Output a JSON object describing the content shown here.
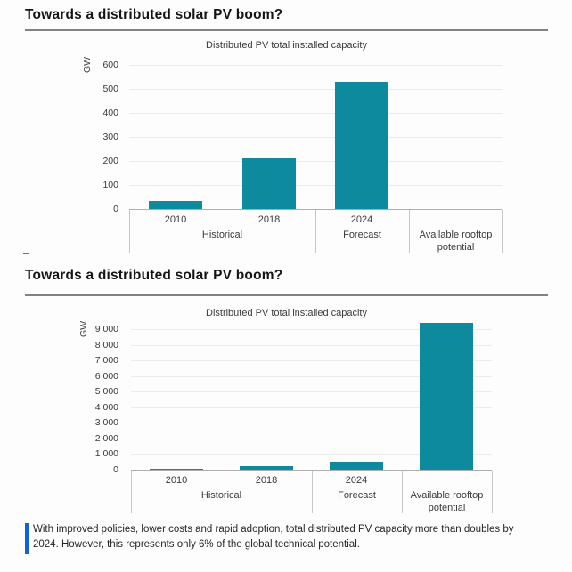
{
  "section1": {
    "title": "Towards a distributed solar PV boom?"
  },
  "section2": {
    "title": "Towards a distributed solar PV boom?"
  },
  "caption": {
    "text": "With improved policies, lower costs and rapid adoption, total distributed PV capacity more than doubles by 2024. However, this represents only 6% of the global technical potential."
  },
  "colors": {
    "bar": "#0d8a9d",
    "gridline": "#ececec",
    "axis_line": "#aeaeae",
    "axis_divider": "#c4c7cb",
    "title_rule": "#828282",
    "caption_accent": "#1161d8",
    "text": "#262626"
  },
  "chart_data": [
    {
      "type": "bar",
      "title": "Distributed PV total installed capacity",
      "ylabel": "GW",
      "categories": [
        "2010",
        "2018",
        "2024",
        "Available rooftop potential"
      ],
      "year_labels": [
        "2010",
        "2018",
        "2024",
        ""
      ],
      "groups": [
        {
          "label": "Historical",
          "cols": 2
        },
        {
          "label": "Forecast",
          "cols": 1
        },
        {
          "label": "Available rooftop potential",
          "cols": 1
        }
      ],
      "values": [
        35,
        210,
        530,
        null
      ],
      "ylim": [
        0,
        600
      ],
      "ytick_values": [
        600,
        500,
        400,
        300,
        200,
        100,
        0
      ],
      "ytick_labels": [
        "600",
        "500",
        "400",
        "300",
        "200",
        "100",
        "0"
      ],
      "grid": "on",
      "legend": "none"
    },
    {
      "type": "bar",
      "title": "Distributed PV total installed capacity",
      "ylabel": "GW",
      "categories": [
        "2010",
        "2018",
        "2024",
        "Available rooftop potential"
      ],
      "year_labels": [
        "2010",
        "2018",
        "2024",
        ""
      ],
      "groups": [
        {
          "label": "Historical",
          "cols": 2
        },
        {
          "label": "Forecast",
          "cols": 1
        },
        {
          "label": "Available rooftop potential",
          "cols": 1
        }
      ],
      "values": [
        35,
        210,
        530,
        9400
      ],
      "ylim": [
        0,
        9000
      ],
      "ytick_values": [
        9000,
        8000,
        7000,
        6000,
        5000,
        4000,
        3000,
        2000,
        1000,
        0
      ],
      "ytick_labels": [
        "9 000",
        "8 000",
        "7 000",
        "6 000",
        "5 000",
        "4 000",
        "3 000",
        "2 000",
        "1 000",
        "0"
      ],
      "grid": "on",
      "legend": "none"
    }
  ]
}
